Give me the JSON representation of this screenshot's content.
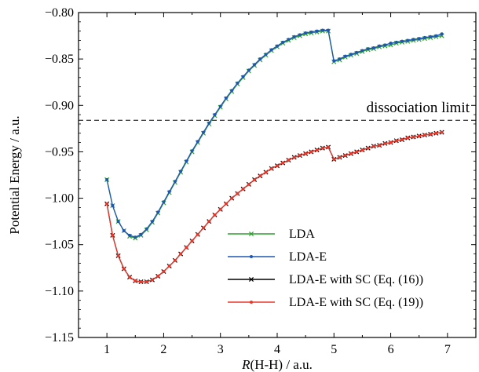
{
  "chart_data": {
    "type": "line",
    "title": "",
    "xlabel": "R(H-H) / a.u.",
    "xlabel_parts": {
      "italic": "R",
      "rest": "(H-H) / a.u."
    },
    "ylabel": "Potential Energy / a.u.",
    "xlim": [
      0.5,
      7.5
    ],
    "ylim": [
      -1.15,
      -0.8
    ],
    "x_ticks": [
      1,
      2,
      3,
      4,
      5,
      6,
      7
    ],
    "x_tick_labels": [
      "1",
      "2",
      "3",
      "4",
      "5",
      "6",
      "7"
    ],
    "y_ticks": [
      -1.15,
      -1.1,
      -1.05,
      -1.0,
      -0.95,
      -0.9,
      -0.85,
      -0.8
    ],
    "y_tick_labels": [
      "−1.15",
      "−1.10",
      "−1.05",
      "−1.00",
      "−0.95",
      "−0.90",
      "−0.85",
      "−0.80"
    ],
    "grid": false,
    "legend_position": "bottom-right",
    "x": [
      1.0,
      1.1,
      1.2,
      1.3,
      1.4,
      1.5,
      1.6,
      1.7,
      1.8,
      1.9,
      2.0,
      2.1,
      2.2,
      2.3,
      2.4,
      2.5,
      2.6,
      2.7,
      2.8,
      2.9,
      3.0,
      3.1,
      3.2,
      3.3,
      3.4,
      3.5,
      3.6,
      3.7,
      3.8,
      3.9,
      4.0,
      4.1,
      4.2,
      4.3,
      4.4,
      4.5,
      4.6,
      4.7,
      4.8,
      4.9,
      5.0,
      5.1,
      5.2,
      5.3,
      5.4,
      5.5,
      5.6,
      5.7,
      5.8,
      5.9,
      6.0,
      6.1,
      6.2,
      6.3,
      6.4,
      6.5,
      6.6,
      6.7,
      6.8,
      6.9
    ],
    "series": [
      {
        "name": "LDA",
        "color": "#2ca02c",
        "marker": "x",
        "values": [
          -0.98,
          -1.008,
          -1.025,
          -1.035,
          -1.041,
          -1.043,
          -1.04,
          -1.034,
          -1.026,
          -1.016,
          -1.005,
          -0.994,
          -0.983,
          -0.972,
          -0.961,
          -0.95,
          -0.94,
          -0.93,
          -0.92,
          -0.911,
          -0.902,
          -0.893,
          -0.885,
          -0.877,
          -0.87,
          -0.863,
          -0.857,
          -0.851,
          -0.846,
          -0.841,
          -0.837,
          -0.833,
          -0.83,
          -0.827,
          -0.825,
          -0.823,
          -0.822,
          -0.821,
          -0.82,
          -0.82,
          -0.853,
          -0.851,
          -0.848,
          -0.846,
          -0.844,
          -0.842,
          -0.84,
          -0.839,
          -0.837,
          -0.836,
          -0.835,
          -0.833,
          -0.832,
          -0.831,
          -0.83,
          -0.829,
          -0.828,
          -0.827,
          -0.826,
          -0.825
        ]
      },
      {
        "name": "LDA-E",
        "color": "#1f56b4",
        "marker": "dot",
        "values": [
          -0.98,
          -1.008,
          -1.025,
          -1.035,
          -1.04,
          -1.042,
          -1.039,
          -1.033,
          -1.025,
          -1.015,
          -1.004,
          -0.993,
          -0.982,
          -0.971,
          -0.96,
          -0.949,
          -0.939,
          -0.929,
          -0.919,
          -0.91,
          -0.901,
          -0.892,
          -0.884,
          -0.876,
          -0.869,
          -0.862,
          -0.856,
          -0.85,
          -0.845,
          -0.84,
          -0.836,
          -0.832,
          -0.829,
          -0.826,
          -0.824,
          -0.822,
          -0.821,
          -0.82,
          -0.819,
          -0.819,
          -0.852,
          -0.85,
          -0.847,
          -0.845,
          -0.843,
          -0.841,
          -0.839,
          -0.838,
          -0.836,
          -0.835,
          -0.833,
          -0.832,
          -0.831,
          -0.83,
          -0.829,
          -0.828,
          -0.827,
          -0.826,
          -0.825,
          -0.823
        ]
      },
      {
        "name": "LDA-E with SC (Eq. (16))",
        "color": "#000000",
        "marker": "x",
        "values": [
          -1.006,
          -1.04,
          -1.062,
          -1.076,
          -1.085,
          -1.089,
          -1.09,
          -1.09,
          -1.088,
          -1.084,
          -1.079,
          -1.073,
          -1.067,
          -1.06,
          -1.053,
          -1.046,
          -1.039,
          -1.032,
          -1.025,
          -1.018,
          -1.012,
          -1.006,
          -1.0,
          -0.995,
          -0.99,
          -0.985,
          -0.98,
          -0.976,
          -0.972,
          -0.968,
          -0.965,
          -0.962,
          -0.959,
          -0.956,
          -0.954,
          -0.952,
          -0.95,
          -0.948,
          -0.946,
          -0.945,
          -0.958,
          -0.956,
          -0.954,
          -0.952,
          -0.95,
          -0.948,
          -0.946,
          -0.944,
          -0.943,
          -0.941,
          -0.94,
          -0.938,
          -0.937,
          -0.935,
          -0.934,
          -0.933,
          -0.932,
          -0.931,
          -0.93,
          -0.929
        ]
      },
      {
        "name": "LDA-E with SC (Eq. (19))",
        "color": "#e8372a",
        "marker": "dot",
        "values": [
          -1.006,
          -1.04,
          -1.062,
          -1.076,
          -1.085,
          -1.089,
          -1.09,
          -1.09,
          -1.088,
          -1.084,
          -1.079,
          -1.073,
          -1.067,
          -1.06,
          -1.053,
          -1.046,
          -1.039,
          -1.032,
          -1.025,
          -1.018,
          -1.012,
          -1.006,
          -1.0,
          -0.995,
          -0.99,
          -0.985,
          -0.98,
          -0.976,
          -0.972,
          -0.968,
          -0.965,
          -0.962,
          -0.959,
          -0.956,
          -0.954,
          -0.952,
          -0.95,
          -0.948,
          -0.946,
          -0.945,
          -0.958,
          -0.956,
          -0.954,
          -0.952,
          -0.95,
          -0.948,
          -0.946,
          -0.944,
          -0.943,
          -0.941,
          -0.94,
          -0.938,
          -0.937,
          -0.935,
          -0.934,
          -0.933,
          -0.932,
          -0.931,
          -0.93,
          -0.929
        ]
      }
    ],
    "reference_line": {
      "y": -0.916,
      "label": "dissociation limit",
      "style": "dashed",
      "color": "#000000"
    }
  }
}
